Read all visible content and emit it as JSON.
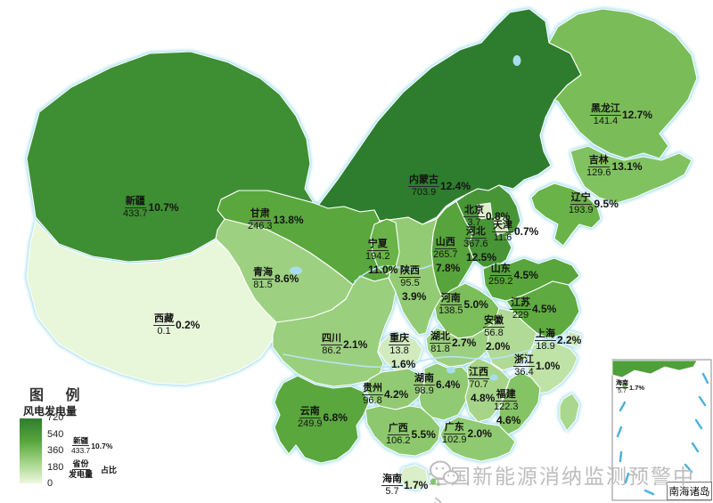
{
  "legend": {
    "title": "图 例",
    "subtitle": "风电发电量",
    "ticks": [
      "720",
      "540",
      "360",
      "180",
      "0"
    ],
    "gradient_top_color": "#2e7d2e",
    "gradient_bottom_color": "#eef8e0",
    "sample": {
      "name": "新疆",
      "value": "433.7",
      "pct": "10.7%",
      "label_name": "省份",
      "label_value": "发电量",
      "label_pct": "占比"
    }
  },
  "watermark": {
    "text": "全国新能源消纳监测预警中心",
    "icon": "wechat-icon",
    "color": "#bdbdbd"
  },
  "inset": {
    "label": "南海诸岛",
    "hainan": {
      "name": "海南",
      "value": "5.7",
      "pct": "1.7%"
    }
  },
  "chart_data": {
    "type": "choropleth-map",
    "title": "风电发电量",
    "region": "中国",
    "value_legend_range": [
      0,
      720
    ],
    "label_format": "省份 / 发电量 · 占比",
    "provinces": [
      {
        "name": "新疆",
        "value": "433.7",
        "pct": "10.7%",
        "color": "#3e8f33"
      },
      {
        "name": "西藏",
        "value": "0.1",
        "pct": "0.2%",
        "color": "#e8f6da"
      },
      {
        "name": "内蒙古",
        "value": "703.9",
        "pct": "12.4%",
        "color": "#2e7d2e"
      },
      {
        "name": "黑龙江",
        "value": "141.4",
        "pct": "12.7%",
        "color": "#7abd58"
      },
      {
        "name": "吉林",
        "value": "129.6",
        "pct": "13.1%",
        "color": "#81c260"
      },
      {
        "name": "辽宁",
        "value": "193.9",
        "pct": "9.5%",
        "color": "#69b348"
      },
      {
        "name": "甘肃",
        "value": "246.3",
        "pct": "13.8%",
        "color": "#5aa73e"
      },
      {
        "name": "青海",
        "value": "81.5",
        "pct": "8.6%",
        "color": "#9dd181"
      },
      {
        "name": "河北",
        "value": "367.6",
        "pct": "12.5%",
        "color": "#479536"
      },
      {
        "name": "山西",
        "value": "265.7",
        "pct": "7.8%",
        "color": "#56a43b"
      },
      {
        "name": "陕西",
        "value": "95.5",
        "pct": "3.9%",
        "color": "#92cb74"
      },
      {
        "name": "宁夏",
        "value": "194.2",
        "pct": "11.0%",
        "color": "#69b348"
      },
      {
        "name": "山东",
        "value": "259.2",
        "pct": "4.5%",
        "color": "#58a53c"
      },
      {
        "name": "河南",
        "value": "138.5",
        "pct": "5.0%",
        "color": "#7cbf5a"
      },
      {
        "name": "江苏",
        "value": "229",
        "pct": "4.5%",
        "color": "#5fab41"
      },
      {
        "name": "安徽",
        "value": "56.8",
        "pct": "2.0%",
        "color": "#b0da95"
      },
      {
        "name": "上海",
        "value": "18.9",
        "pct": "2.2%",
        "color": "#cce8b6"
      },
      {
        "name": "浙江",
        "value": "36.4",
        "pct": "1.0%",
        "color": "#bfe2a6"
      },
      {
        "name": "湖北",
        "value": "81.8",
        "pct": "2.7%",
        "color": "#9cd080"
      },
      {
        "name": "重庆",
        "value": "13.8",
        "pct": "1.6%",
        "color": "#d2ebbe"
      },
      {
        "name": "四川",
        "value": "86.2",
        "pct": "2.1%",
        "color": "#9acf7d"
      },
      {
        "name": "贵州",
        "value": "96.8",
        "pct": "4.2%",
        "color": "#91ca73"
      },
      {
        "name": "湖南",
        "value": "98.9",
        "pct": "6.4%",
        "color": "#90ca72"
      },
      {
        "name": "江西",
        "value": "70.7",
        "pct": "4.8%",
        "color": "#a6d58a"
      },
      {
        "name": "福建",
        "value": "122.3",
        "pct": "4.6%",
        "color": "#85c465"
      },
      {
        "name": "云南",
        "value": "249.9",
        "pct": "6.8%",
        "color": "#5aa73e"
      },
      {
        "name": "广西",
        "value": "106.2",
        "pct": "5.5%",
        "color": "#8dc86e"
      },
      {
        "name": "广东",
        "value": "102.9",
        "pct": "2.0%",
        "color": "#8fc971"
      },
      {
        "name": "海南",
        "value": "5.7",
        "pct": "1.7%",
        "color": "#daefc8"
      },
      {
        "name": "北京",
        "value": "3.7",
        "pct": "0.8%",
        "color": "#ddf0cc"
      },
      {
        "name": "天津",
        "value": "11.6",
        "pct": "0.7%",
        "color": "#d4ecc0"
      }
    ]
  }
}
